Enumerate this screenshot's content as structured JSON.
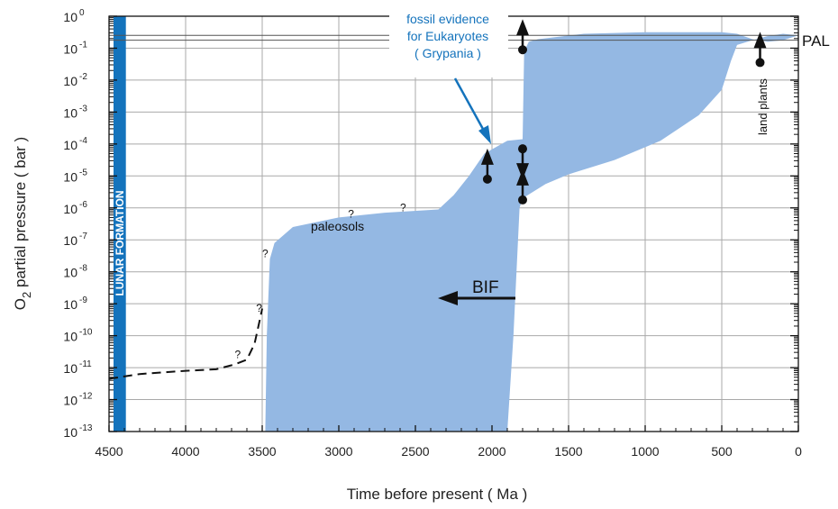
{
  "chart_data": {
    "type": "area",
    "xlabel": "Time before present ( Ma )",
    "ylabel": "O2 partial pressure ( bar )",
    "ylabel_main": "O",
    "ylabel_sub": "2",
    "ylabel_rest": " partial pressure ( bar )",
    "x_reversed": true,
    "xlim": [
      4500,
      0
    ],
    "ylim_log10": [
      -13,
      0
    ],
    "y_scale": "log",
    "grid": true,
    "x_ticks": [
      4500,
      4000,
      3500,
      3000,
      2500,
      2000,
      1500,
      1000,
      500,
      0
    ],
    "x_tick_labels": [
      "4500",
      "4000",
      "3500",
      "3000",
      "2500",
      "2000",
      "1500",
      "1000",
      "500",
      "0"
    ],
    "y_ticks_exp": [
      0,
      -1,
      -2,
      -3,
      -4,
      -5,
      -6,
      -7,
      -8,
      -9,
      -10,
      -11,
      -12,
      -13
    ],
    "y_tick_labels": [
      {
        "base": "10",
        "exp": "0"
      },
      {
        "base": "10",
        "exp": "-1"
      },
      {
        "base": "10",
        "exp": "-2"
      },
      {
        "base": "10",
        "exp": "-3"
      },
      {
        "base": "10",
        "exp": "-4"
      },
      {
        "base": "10",
        "exp": "-5"
      },
      {
        "base": "10",
        "exp": "-6"
      },
      {
        "base": "10",
        "exp": "-7"
      },
      {
        "base": "10",
        "exp": "-8"
      },
      {
        "base": "10",
        "exp": "-9"
      },
      {
        "base": "10",
        "exp": "-10"
      },
      {
        "base": "10",
        "exp": "-11"
      },
      {
        "base": "10",
        "exp": "-12"
      },
      {
        "base": "10",
        "exp": "-13"
      }
    ],
    "pal_lines_log10": [
      -0.6,
      -0.75
    ],
    "colors": {
      "band": "#94b8e3",
      "lunar_bar": "#1473bc",
      "fossil_text": "#1473bc",
      "ink": "#111111"
    },
    "band_upper": [
      [
        3480,
        -13
      ],
      [
        3470,
        -10
      ],
      [
        3450,
        -7.6
      ],
      [
        3420,
        -7.1
      ],
      [
        3300,
        -6.6
      ],
      [
        3000,
        -6.3
      ],
      [
        2700,
        -6.15
      ],
      [
        2350,
        -6.05
      ],
      [
        2250,
        -5.6
      ],
      [
        2150,
        -5.0
      ],
      [
        2050,
        -4.3
      ],
      [
        1900,
        -3.9
      ],
      [
        1800,
        -3.85
      ],
      [
        1790,
        -1.1
      ],
      [
        1760,
        -0.8
      ],
      [
        1700,
        -0.72
      ],
      [
        1400,
        -0.55
      ],
      [
        1000,
        -0.5
      ],
      [
        700,
        -0.5
      ],
      [
        500,
        -0.5
      ],
      [
        400,
        -0.55
      ],
      [
        300,
        -0.72
      ],
      [
        200,
        -0.8
      ],
      [
        100,
        -0.75
      ],
      [
        0,
        -0.6
      ]
    ],
    "band_lower": [
      [
        0,
        -0.6
      ],
      [
        100,
        -0.55
      ],
      [
        200,
        -0.62
      ],
      [
        300,
        -0.75
      ],
      [
        400,
        -0.9
      ],
      [
        440,
        -1.4
      ],
      [
        500,
        -2.3
      ],
      [
        650,
        -3.1
      ],
      [
        900,
        -3.9
      ],
      [
        1200,
        -4.5
      ],
      [
        1500,
        -4.95
      ],
      [
        1650,
        -5.25
      ],
      [
        1800,
        -5.7
      ],
      [
        1820,
        -6.0
      ],
      [
        1860,
        -10
      ],
      [
        1900,
        -13
      ]
    ],
    "dashed_line": [
      [
        4500,
        -11.35
      ],
      [
        4300,
        -11.2
      ],
      [
        4000,
        -11.1
      ],
      [
        3800,
        -11.05
      ],
      [
        3680,
        -10.9
      ],
      [
        3600,
        -10.75
      ],
      [
        3550,
        -10.25
      ],
      [
        3520,
        -9.6
      ],
      [
        3500,
        -9.15
      ]
    ],
    "lunar_formation": {
      "label": "LUNAR FORMATION",
      "x_start": 4500,
      "x_end": 4390
    },
    "markers": [
      {
        "type": "dot-arrow-up",
        "x": 2030,
        "y_exp": -5.1
      },
      {
        "type": "dot-arrow-up",
        "x": 1800,
        "y_exp": -1.05
      },
      {
        "type": "dot-arrow-down",
        "x": 1800,
        "y_exp": -4.15
      },
      {
        "type": "dot-arrow-up",
        "x": 1800,
        "y_exp": -5.75
      },
      {
        "type": "dot-arrow-up",
        "x": 250,
        "y_exp": -1.45
      }
    ],
    "annotations": {
      "fossil": [
        "fossil evidence",
        "for Eukaryotes",
        "( Grypania )"
      ],
      "bif": "BIF",
      "paleosols": "paleosols",
      "land_plants": "land plants",
      "pal": "PAL",
      "question_marks": [
        {
          "text": "?",
          "x": 3480,
          "y_exp": -7.55
        },
        {
          "text": "?",
          "x": 2920,
          "y_exp": -6.3
        },
        {
          "text": "?",
          "x": 2580,
          "y_exp": -6.1
        },
        {
          "text": "?",
          "x": 3520,
          "y_exp": -9.25
        },
        {
          "text": "?",
          "x": 3660,
          "y_exp": -10.7
        }
      ]
    }
  }
}
